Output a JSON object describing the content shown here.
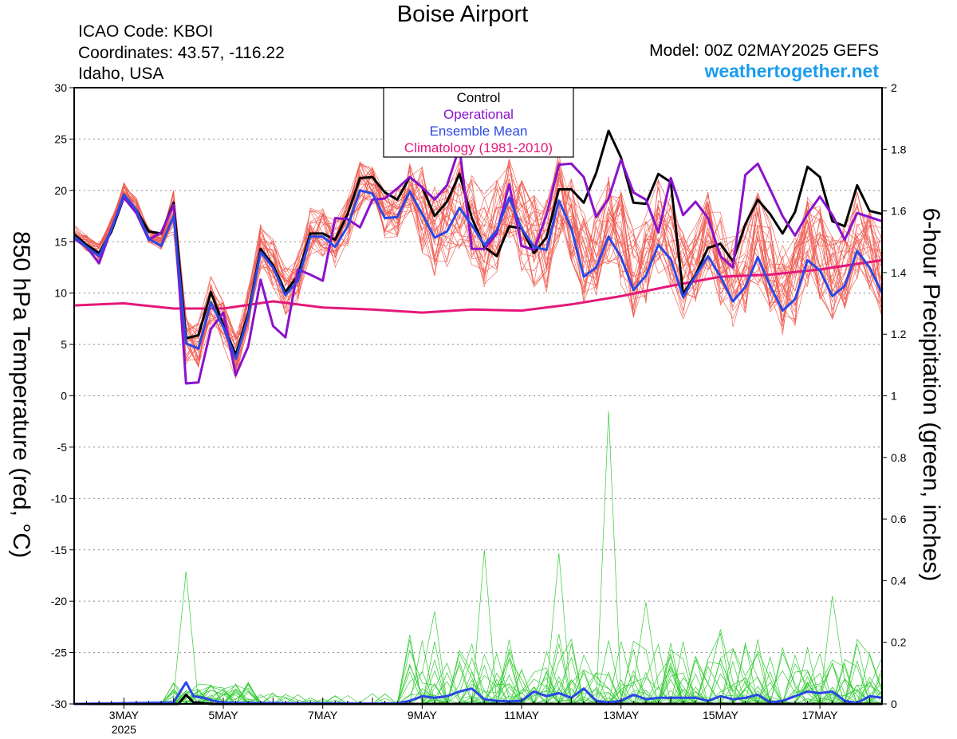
{
  "header": {
    "title": "Boise Airport",
    "icao": "ICAO Code: KBOI",
    "coords": "Coordinates: 43.57, -116.22",
    "region": "Idaho, USA",
    "model": "Model: 00Z 02MAY2025 GEFS",
    "site": "weathertogether.net"
  },
  "colors": {
    "members": "#f05a4f",
    "precip_members": "#33cc33",
    "control": "#000000",
    "operational": "#8a12cc",
    "ensemble_mean": "#2a48e6",
    "climatology": "#e6177a"
  },
  "chart_data": {
    "type": "line",
    "title": "Boise Airport",
    "ylabel": "850 hPa Temperature (red, °C)",
    "y2label": "6-hour Precipitation (green, inches)",
    "ylim": [
      -30,
      30
    ],
    "y2lim": [
      0,
      2
    ],
    "yticks": [
      -30,
      -25,
      -20,
      -15,
      -10,
      -5,
      0,
      5,
      10,
      15,
      20,
      25,
      30
    ],
    "y2ticks": [
      0,
      0.2,
      0.4,
      0.6,
      0.8,
      1,
      1.2,
      1.4,
      1.6,
      1.8,
      2
    ],
    "xlim": [
      0,
      16.25
    ],
    "xticks": [
      {
        "x": 1,
        "label": "3MAY",
        "sub": "2025"
      },
      {
        "x": 3,
        "label": "5MAY",
        "sub": ""
      },
      {
        "x": 5,
        "label": "7MAY",
        "sub": ""
      },
      {
        "x": 7,
        "label": "9MAY",
        "sub": ""
      },
      {
        "x": 9,
        "label": "11MAY",
        "sub": ""
      },
      {
        "x": 11,
        "label": "13MAY",
        "sub": ""
      },
      {
        "x": 13,
        "label": "15MAY",
        "sub": ""
      },
      {
        "x": 15,
        "label": "17MAY",
        "sub": ""
      }
    ],
    "grid": "horizontal dotted",
    "legend": {
      "placement": "top-center",
      "entries": [
        {
          "label": "Control",
          "color": "#000000"
        },
        {
          "label": "Operational",
          "color": "#8a12cc"
        },
        {
          "label": "Ensemble Mean",
          "color": "#2a48e6"
        },
        {
          "label": "Climatology (1981-2010)",
          "color": "#e6177a"
        }
      ]
    },
    "series": [
      {
        "key": "control",
        "axis": "left",
        "x": [
          0,
          0.25,
          0.5,
          0.75,
          1,
          1.25,
          1.5,
          1.75,
          2,
          2.25,
          2.5,
          2.75,
          3,
          3.25,
          3.5,
          3.75,
          4,
          4.25,
          4.5,
          4.75,
          5,
          5.25,
          5.5,
          5.75,
          6,
          6.25,
          6.5,
          6.75,
          7,
          7.25,
          7.5,
          7.75,
          8,
          8.25,
          8.5,
          8.75,
          9,
          9.25,
          9.5,
          9.75,
          10,
          10.25,
          10.5,
          10.75,
          11,
          11.25,
          11.5,
          11.75,
          12,
          12.25,
          12.5,
          12.75,
          13,
          13.25,
          13.5,
          13.75,
          14,
          14.25,
          14.5,
          14.75,
          15,
          15.25,
          15.5,
          15.75,
          16,
          16.25
        ],
        "values": [
          15.7,
          14.7,
          13.9,
          16,
          19.3,
          18.1,
          16,
          15.8,
          18.8,
          5.6,
          5.9,
          10.1,
          6.9,
          4,
          8,
          14.3,
          12.7,
          10.1,
          11.7,
          15.8,
          15.8,
          15.2,
          17.7,
          21.2,
          21.3,
          19.8,
          19.1,
          21.3,
          20.3,
          17.5,
          18.9,
          21.6,
          17.3,
          14.5,
          13.6,
          16.5,
          16.3,
          13.9,
          15.4,
          20.1,
          20.1,
          18.8,
          21.7,
          25.8,
          23.2,
          18.8,
          18.7,
          21.6,
          20.8,
          9.9,
          11.8,
          14.4,
          14.8,
          13.1,
          16.7,
          19.1,
          17.7,
          15.8,
          17.9,
          22.3,
          21.3,
          17,
          16.5,
          20.5,
          18,
          17.7
        ]
      },
      {
        "key": "operational",
        "axis": "left",
        "x": [
          0,
          0.25,
          0.5,
          0.75,
          1,
          1.25,
          1.5,
          1.75,
          2,
          2.25,
          2.5,
          2.75,
          3,
          3.25,
          3.5,
          3.75,
          4,
          4.25,
          4.5,
          4.75,
          5,
          5.25,
          5.5,
          5.75,
          6,
          6.25,
          6.5,
          6.75,
          7,
          7.25,
          7.5,
          7.75,
          8,
          8.25,
          8.5,
          8.75,
          9,
          9.25,
          9.5,
          9.75,
          10,
          10.25,
          10.5,
          10.75,
          11,
          11.25,
          11.5,
          11.75,
          12,
          12.25,
          12.5,
          12.75,
          13,
          13.25,
          13.5,
          13.75,
          14,
          14.25,
          14.5,
          14.75,
          15,
          15.25,
          15.5,
          15.75,
          16,
          16.25
        ],
        "values": [
          15.3,
          14.5,
          12.9,
          16.3,
          19.3,
          17.8,
          15.2,
          15.9,
          18.6,
          1.2,
          1.3,
          6.5,
          8.1,
          2,
          4.8,
          11.3,
          6.8,
          5.7,
          12.3,
          11.8,
          11.2,
          17.3,
          17.2,
          16.4,
          19.1,
          19.2,
          20.2,
          21.3,
          20.3,
          19.1,
          20.5,
          24.2,
          14.3,
          14.3,
          15.8,
          20.6,
          14.6,
          14.2,
          17.6,
          22.5,
          22.6,
          21.3,
          17.4,
          19.2,
          23,
          19.8,
          19.1,
          15.9,
          21.2,
          17.6,
          18.9,
          17.3,
          13.6,
          12.5,
          21.5,
          22.6,
          20.1,
          17.5,
          15.6,
          17.7,
          19.4,
          17.6,
          15.2,
          17.8,
          17.4,
          17
        ]
      },
      {
        "key": "ensemble_mean",
        "axis": "left",
        "x": [
          0,
          0.25,
          0.5,
          0.75,
          1,
          1.25,
          1.5,
          1.75,
          2,
          2.25,
          2.5,
          2.75,
          3,
          3.25,
          3.5,
          3.75,
          4,
          4.25,
          4.5,
          4.75,
          5,
          5.25,
          5.5,
          5.75,
          6,
          6.25,
          6.5,
          6.75,
          7,
          7.25,
          7.5,
          7.75,
          8,
          8.25,
          8.5,
          8.75,
          9,
          9.25,
          9.5,
          9.75,
          10,
          10.25,
          10.5,
          10.75,
          11,
          11.25,
          11.5,
          11.75,
          12,
          12.25,
          12.5,
          12.75,
          13,
          13.25,
          13.5,
          13.75,
          14,
          14.25,
          14.5,
          14.75,
          15,
          15.25,
          15.5,
          15.75,
          16,
          16.25
        ],
        "values": [
          15.5,
          14.5,
          13.6,
          16.2,
          19.6,
          18.1,
          15.3,
          14.6,
          17.5,
          5.1,
          4.6,
          9.1,
          6.7,
          3.6,
          7.7,
          14,
          12.5,
          9.8,
          11.2,
          15.5,
          15.5,
          14.5,
          16.5,
          20,
          19.7,
          17.3,
          17.4,
          19.9,
          17.7,
          15.4,
          16,
          18.3,
          16.6,
          14.7,
          16.1,
          19.3,
          16.3,
          14.5,
          14.2,
          19,
          16.3,
          11.6,
          12.5,
          15.5,
          13.5,
          10.3,
          11.7,
          14.7,
          13.3,
          9.6,
          11.7,
          13.6,
          11.6,
          9.2,
          10.6,
          13.5,
          10.7,
          8.3,
          9.4,
          13.2,
          12.2,
          9.7,
          10.7,
          14.1,
          12.5,
          10
        ]
      },
      {
        "key": "climatology",
        "axis": "left",
        "x": [
          0,
          1,
          2,
          3,
          4,
          5,
          6,
          7,
          8,
          9,
          10,
          11,
          12,
          13,
          14,
          15,
          16.25
        ],
        "values": [
          8.8,
          9,
          8.5,
          8.5,
          9.2,
          8.6,
          8.4,
          8.1,
          8.4,
          8.3,
          8.9,
          9.7,
          10.7,
          11.6,
          11.8,
          12.3,
          13.2
        ]
      },
      {
        "key": "control_precip",
        "axis": "right",
        "x": [
          0,
          2.1,
          2.25,
          2.4,
          2.55,
          2.75,
          16.25
        ],
        "values": [
          0,
          0,
          0.03,
          0.005,
          0.003,
          0,
          0
        ]
      },
      {
        "key": "mean_precip",
        "axis": "right",
        "x": [
          0,
          2,
          2.25,
          2.4,
          2.6,
          2.8,
          3,
          3.3,
          3.6,
          4,
          4.5,
          5,
          5.5,
          6,
          6.5,
          6.75,
          7,
          7.25,
          7.5,
          7.75,
          8,
          8.25,
          8.5,
          8.75,
          9,
          9.25,
          9.5,
          9.75,
          10,
          10.25,
          10.5,
          10.75,
          11,
          11.25,
          11.5,
          11.75,
          12,
          12.25,
          12.5,
          12.75,
          13,
          13.25,
          13.5,
          13.75,
          14,
          14.25,
          14.5,
          14.75,
          15,
          15.25,
          15.5,
          15.75,
          16,
          16.25
        ],
        "values": [
          0,
          0.005,
          0.07,
          0.025,
          0.02,
          0.01,
          0.005,
          0.003,
          0.003,
          0.003,
          0.002,
          0.002,
          0.002,
          0.001,
          0.002,
          0.01,
          0.025,
          0.02,
          0.025,
          0.04,
          0.05,
          0.015,
          0.01,
          0.008,
          0.01,
          0.04,
          0.025,
          0.035,
          0.02,
          0.05,
          0.01,
          0.005,
          0.01,
          0.03,
          0.015,
          0.02,
          0.02,
          0.02,
          0.02,
          0.01,
          0.025,
          0.015,
          0.02,
          0.03,
          0.005,
          0.01,
          0.025,
          0.04,
          0.035,
          0.04,
          0.01,
          0.003,
          0.025,
          0.02
        ]
      }
    ]
  }
}
